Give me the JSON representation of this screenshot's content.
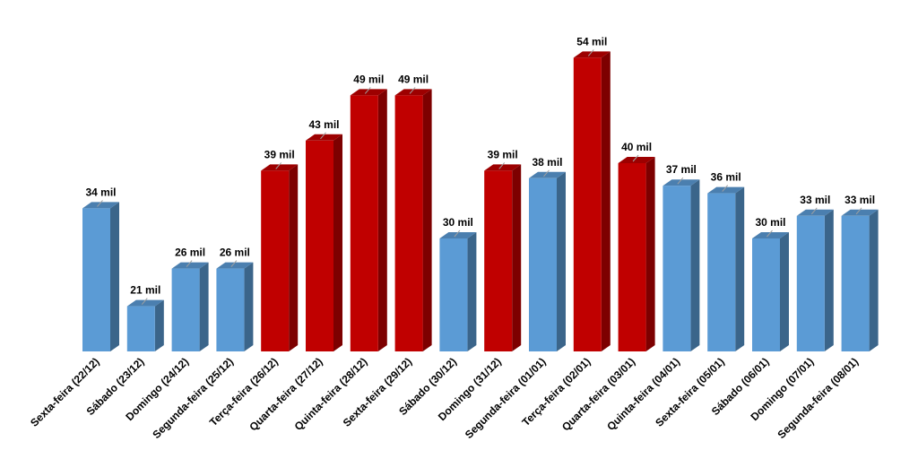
{
  "chart_data": {
    "type": "bar3d",
    "categories": [
      "Sexta-feira (22/12)",
      "Sábado (23/12)",
      "Domingo (24/12)",
      "Segunda-feira (25/12)",
      "Terça-feira (26/12)",
      "Quarta-feira (27/12)",
      "Quinta-feira (28/12)",
      "Sexta-feira (29/12)",
      "Sábado (30/12)",
      "Domingo (31/12)",
      "Segunda-feira (01/01)",
      "Terça-feira (02/01)",
      "Quarta-feira (03/01)",
      "Quinta-feira (04/01)",
      "Sexta-feira (05/01)",
      "Sábado (06/01)",
      "Domingo (07/01)",
      "Segunda-feira (08/01)"
    ],
    "values": [
      34,
      21,
      26,
      26,
      39,
      43,
      49,
      49,
      30,
      39,
      38,
      54,
      40,
      37,
      36,
      30,
      33,
      33
    ],
    "value_labels": [
      "34 mil",
      "21 mil",
      "26 mil",
      "26 mil",
      "39 mil",
      "43 mil",
      "49 mil",
      "49 mil",
      "30 mil",
      "39 mil",
      "38 mil",
      "54 mil",
      "40 mil",
      "37 mil",
      "36 mil",
      "30 mil",
      "33 mil",
      "33 mil"
    ],
    "colors": [
      "#5b9bd5",
      "#5b9bd5",
      "#5b9bd5",
      "#5b9bd5",
      "#c00000",
      "#c00000",
      "#c00000",
      "#c00000",
      "#5b9bd5",
      "#c00000",
      "#5b9bd5",
      "#c00000",
      "#c00000",
      "#5b9bd5",
      "#5b9bd5",
      "#5b9bd5",
      "#5b9bd5",
      "#5b9bd5"
    ],
    "ylim": [
      15,
      56
    ]
  }
}
